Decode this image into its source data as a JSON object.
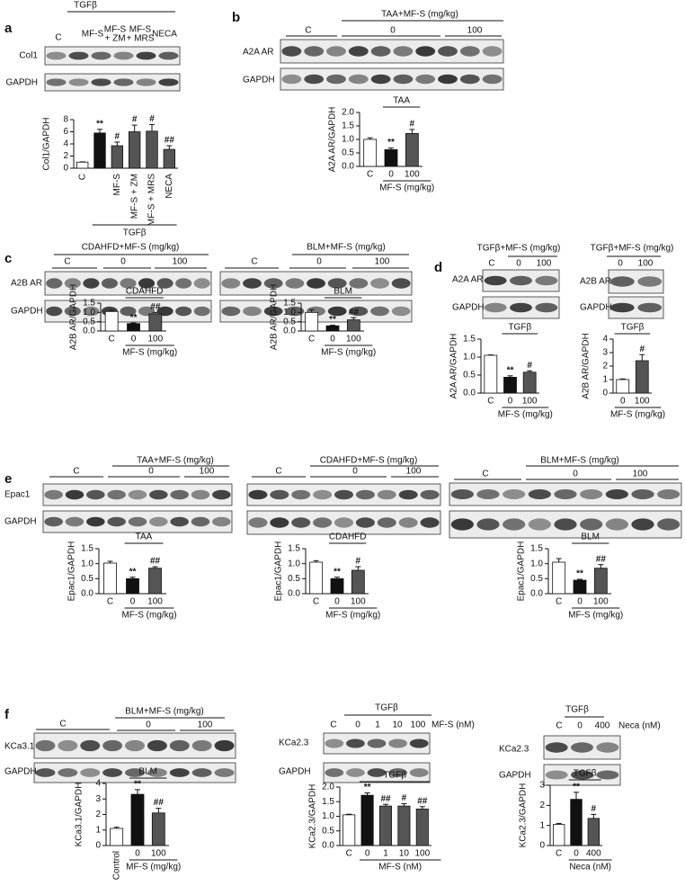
{
  "figure": {
    "panel_letters": [
      "a",
      "b",
      "c",
      "d",
      "e",
      "f"
    ],
    "blots": [
      {
        "labels": [
          "TGFβ",
          "C",
          "MF-S",
          "MF-S",
          "+ ZM",
          "MF-S",
          "+ MRS",
          "NECA"
        ],
        "rows": [
          "Col1",
          "GAPDH"
        ]
      },
      {
        "labels": [
          "TAA+MF-S (mg/kg)",
          "C",
          "0",
          "100"
        ],
        "rows": [
          "A2A AR",
          "GAPDH"
        ]
      },
      {
        "labels": [
          "CDAHFD+MF-S (mg/kg)",
          "C",
          "0",
          "100"
        ],
        "rows": [
          "A2B AR",
          "GAPDH"
        ]
      },
      {
        "labels": [
          "BLM+MF-S (mg/kg)",
          "C",
          "0",
          "100"
        ],
        "rows": []
      },
      {
        "labels": [
          "TGFβ+MF-S (mg/kg)",
          "C",
          "0",
          "100"
        ],
        "rows": [
          "A2A AR",
          "GAPDH"
        ]
      },
      {
        "labels": [
          "TGFβ+MF-S (mg/kg)",
          "0",
          "100"
        ],
        "rows": [
          "A2B AR",
          "GAPDH"
        ]
      },
      {
        "labels": [
          "TAA+MF-S (mg/kg)",
          "C",
          "0",
          "100"
        ],
        "rows": [
          "Epac1",
          "GAPDH"
        ]
      },
      {
        "labels": [
          "CDAHFD+MF-S (mg/kg)",
          "C",
          "0",
          "100"
        ],
        "rows": []
      },
      {
        "labels": [
          "BLM+MF-S (mg/kg)",
          "C",
          "0",
          "100"
        ],
        "rows": []
      },
      {
        "labels": [
          "BLM+MF-S (mg/kg)",
          "C",
          "0",
          "100"
        ],
        "rows": [
          "KCa3.1",
          "GAPDH"
        ]
      },
      {
        "labels": [
          "TGFβ",
          "C",
          "0",
          "1",
          "10",
          "100",
          "MF-S (nM)"
        ],
        "rows": [
          "KCa2.3",
          "GAPDH"
        ]
      },
      {
        "labels": [
          "TGFβ",
          "C",
          "0",
          "400",
          "Neca (nM)"
        ],
        "rows": [
          "KCa2.3",
          "GAPDH"
        ]
      }
    ]
  },
  "chart_data": [
    {
      "type": "bar",
      "ylabel": "Col1/GAPDH",
      "categories": [
        "C",
        null,
        "MF-S",
        "MF-S + ZM",
        "MF-S + MRS",
        "NECA"
      ],
      "values": [
        1,
        5.8,
        3.7,
        6.0,
        6.1,
        3.1
      ],
      "errors": [
        0.05,
        0.6,
        0.6,
        1.1,
        1.1,
        0.6
      ],
      "colors": [
        "#ffffff",
        "#111111",
        "#555555",
        "#555555",
        "#555555",
        "#555555"
      ],
      "annotations": [
        null,
        "**",
        "#",
        "#",
        "#",
        "##"
      ],
      "group_label": "TGFβ",
      "ylim": [
        0,
        8
      ],
      "yticks": [
        0,
        2,
        4,
        6,
        8
      ]
    },
    {
      "type": "bar",
      "ylabel": "A2A AR/GAPDH",
      "categories": [
        "C",
        "0",
        "100"
      ],
      "values": [
        1.0,
        0.62,
        1.22
      ],
      "errors": [
        0.06,
        0.06,
        0.15
      ],
      "colors": [
        "#ffffff",
        "#111111",
        "#555555"
      ],
      "annotations": [
        null,
        "**",
        "#"
      ],
      "group_label": "TAA",
      "xlabel": "MF-S (mg/kg)",
      "ylim": [
        0,
        2
      ],
      "yticks": [
        {
          "value": 0,
          "label": "0.0"
        },
        {
          "value": 0.5,
          "label": "0.5"
        },
        {
          "value": 1,
          "label": "1.0"
        },
        {
          "value": 1.5,
          "label": "1.5"
        },
        {
          "value": 2,
          "label": "2.0"
        }
      ]
    },
    {
      "type": "bar",
      "ylabel": "A2B AR/GAPDH",
      "categories": [
        "C",
        "0",
        "100"
      ],
      "values": [
        1.05,
        0.4,
        0.92
      ],
      "errors": [
        0.06,
        0.03,
        0.08
      ],
      "colors": [
        "#ffffff",
        "#111111",
        "#555555"
      ],
      "annotations": [
        null,
        "**",
        "##"
      ],
      "group_label": "CDAHFD",
      "xlabel": "MF-S (mg/kg)",
      "ylim": [
        0,
        1.5
      ],
      "yticks": [
        {
          "value": 0,
          "label": "0.0"
        },
        {
          "value": 0.5,
          "label": "0.5"
        },
        {
          "value": 1,
          "label": "1.0"
        },
        {
          "value": 1.5,
          "label": "1.5"
        }
      ]
    },
    {
      "type": "bar",
      "ylabel": "A2B AR/GAPDH",
      "categories": [
        "C",
        "0",
        "100"
      ],
      "values": [
        1.0,
        0.28,
        0.6
      ],
      "errors": [
        0.15,
        0.03,
        0.12
      ],
      "colors": [
        "#ffffff",
        "#111111",
        "#555555"
      ],
      "annotations": [
        null,
        "**",
        "##"
      ],
      "group_label": "BLM",
      "xlabel": "MF-S (mg/kg)",
      "ylim": [
        0,
        1.5
      ],
      "yticks": [
        {
          "value": 0,
          "label": "0.0"
        },
        {
          "value": 0.5,
          "label": "0.5"
        },
        {
          "value": 1,
          "label": "1.0"
        },
        {
          "value": 1.5,
          "label": "1.5"
        }
      ]
    },
    {
      "type": "bar",
      "ylabel": "A2A AR/GAPDH",
      "categories": [
        "C",
        "0",
        "100"
      ],
      "values": [
        1.05,
        0.44,
        0.58
      ],
      "errors": [
        0.01,
        0.04,
        0.04
      ],
      "colors": [
        "#ffffff",
        "#111111",
        "#555555"
      ],
      "annotations": [
        null,
        "**",
        "#"
      ],
      "group_label": "TGFβ",
      "xlabel": "MF-S (mg/kg)",
      "ylim": [
        0,
        1.5
      ],
      "yticks": [
        {
          "value": 0,
          "label": "0.0"
        },
        {
          "value": 0.5,
          "label": "0.5"
        },
        {
          "value": 1,
          "label": "1.0"
        },
        {
          "value": 1.5,
          "label": "1.5"
        }
      ]
    },
    {
      "type": "bar",
      "ylabel": "A2B AR/GAPDH",
      "categories": [
        "0",
        "100"
      ],
      "values": [
        1.0,
        2.4
      ],
      "errors": [
        0.05,
        0.45
      ],
      "colors": [
        "#ffffff",
        "#555555"
      ],
      "annotations": [
        null,
        "#"
      ],
      "group_label": "TGFβ",
      "xlabel": "MF-S (mg/kg)",
      "ylim": [
        0,
        4
      ],
      "yticks": [
        0,
        1,
        2,
        3,
        4
      ]
    },
    {
      "type": "bar",
      "ylabel": "Epac1/GAPDH",
      "categories": [
        "C",
        "0",
        "100"
      ],
      "values": [
        1.02,
        0.5,
        0.85
      ],
      "errors": [
        0.06,
        0.05,
        0.05
      ],
      "colors": [
        "#ffffff",
        "#111111",
        "#555555"
      ],
      "annotations": [
        null,
        "**",
        "##"
      ],
      "group_label": "TAA",
      "xlabel": "MF-S (mg/kg)",
      "ylim": [
        0,
        1.5
      ],
      "yticks": [
        {
          "value": 0,
          "label": "0.0"
        },
        {
          "value": 0.5,
          "label": "0.5"
        },
        {
          "value": 1,
          "label": "1.0"
        },
        {
          "value": 1.5,
          "label": "1.5"
        }
      ]
    },
    {
      "type": "bar",
      "ylabel": "Epac1/GAPDH",
      "categories": [
        "C",
        "0",
        "100"
      ],
      "values": [
        1.05,
        0.5,
        0.78
      ],
      "errors": [
        0.05,
        0.05,
        0.12
      ],
      "colors": [
        "#ffffff",
        "#111111",
        "#555555"
      ],
      "annotations": [
        null,
        "**",
        "#"
      ],
      "group_label": "CDAHFD",
      "xlabel": "MF-S (mg/kg)",
      "ylim": [
        0,
        1.5
      ],
      "yticks": [
        {
          "value": 0,
          "label": "0.0"
        },
        {
          "value": 0.5,
          "label": "0.5"
        },
        {
          "value": 1,
          "label": "1.0"
        },
        {
          "value": 1.5,
          "label": "1.5"
        }
      ]
    },
    {
      "type": "bar",
      "ylabel": "Epac1/GAPDH",
      "categories": [
        "C",
        "0",
        "100"
      ],
      "values": [
        1.05,
        0.45,
        0.85
      ],
      "errors": [
        0.12,
        0.03,
        0.12
      ],
      "colors": [
        "#ffffff",
        "#111111",
        "#555555"
      ],
      "annotations": [
        null,
        "**",
        "##"
      ],
      "group_label": "BLM",
      "xlabel": "MF-S (mg/kg)",
      "ylim": [
        0,
        1.5
      ],
      "yticks": [
        {
          "value": 0,
          "label": "0.0"
        },
        {
          "value": 0.5,
          "label": "0.5"
        },
        {
          "value": 1,
          "label": "1.0"
        },
        {
          "value": 1.5,
          "label": "1.5"
        }
      ]
    },
    {
      "type": "bar",
      "ylabel": "KCa3.1/GAPDH",
      "categories": [
        "Control",
        "0",
        "100"
      ],
      "values": [
        1.1,
        3.3,
        2.1
      ],
      "errors": [
        0.08,
        0.3,
        0.3
      ],
      "colors": [
        "#ffffff",
        "#111111",
        "#555555"
      ],
      "annotations": [
        null,
        "**",
        "##"
      ],
      "group_label": "BLM",
      "xlabel": "MF-S (mg/kg)",
      "ylim": [
        0,
        4
      ],
      "yticks": [
        0,
        1,
        2,
        3,
        4
      ]
    },
    {
      "type": "bar",
      "ylabel": "KCa2.3/GAPDH",
      "categories": [
        "C",
        "0",
        "1",
        "10",
        "100"
      ],
      "values": [
        1.05,
        1.72,
        1.35,
        1.35,
        1.25
      ],
      "errors": [
        0.02,
        0.08,
        0.06,
        0.08,
        0.08
      ],
      "colors": [
        "#ffffff",
        "#111111",
        "#555555",
        "#555555",
        "#555555"
      ],
      "annotations": [
        null,
        "**",
        "##",
        "#",
        "##"
      ],
      "group_label": "TGFβ",
      "xlabel": "MF-S (nM)",
      "ylim": [
        0,
        2
      ],
      "yticks": [
        {
          "value": 0,
          "label": "0.0"
        },
        {
          "value": 0.5,
          "label": "0.5"
        },
        {
          "value": 1,
          "label": "1.0"
        },
        {
          "value": 1.5,
          "label": "1.5"
        },
        {
          "value": 2,
          "label": "2.0"
        }
      ]
    },
    {
      "type": "bar",
      "ylabel": "KCa2.3/GAPDH",
      "categories": [
        "C",
        "0",
        "400"
      ],
      "values": [
        1.05,
        2.3,
        1.35
      ],
      "errors": [
        0.05,
        0.35,
        0.2
      ],
      "colors": [
        "#ffffff",
        "#111111",
        "#555555"
      ],
      "annotations": [
        null,
        "**",
        "#"
      ],
      "group_label": "TGFβ",
      "xlabel": "Neca (nM)",
      "ylim": [
        0,
        3
      ],
      "yticks": [
        0,
        1,
        2,
        3
      ]
    }
  ]
}
